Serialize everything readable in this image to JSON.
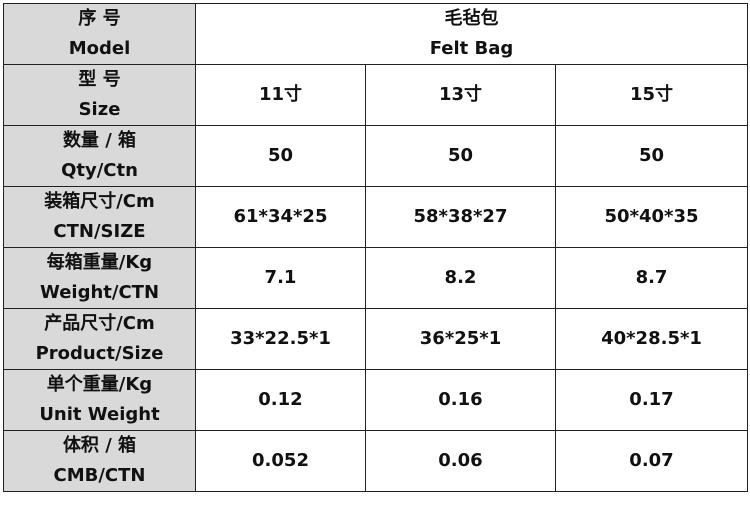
{
  "table": {
    "header": {
      "label": [
        "序 号",
        "Model"
      ],
      "product": [
        "毛毡包",
        "Felt Bag"
      ]
    },
    "rows": [
      {
        "label": [
          "型 号",
          "Size"
        ],
        "cells": [
          "11寸",
          "13寸",
          "15寸"
        ]
      },
      {
        "label": [
          "数量 / 箱",
          "Qty/Ctn"
        ],
        "cells": [
          "50",
          "50",
          "50"
        ]
      },
      {
        "label": [
          "装箱尺寸/Cm",
          "CTN/SIZE"
        ],
        "cells": [
          "61*34*25",
          "58*38*27",
          "50*40*35"
        ]
      },
      {
        "label": [
          "每箱重量/Kg",
          "Weight/CTN"
        ],
        "cells": [
          "7.1",
          "8.2",
          "8.7"
        ]
      },
      {
        "label": [
          "产品尺寸/Cm",
          "Product/Size"
        ],
        "cells": [
          "33*22.5*1",
          "36*25*1",
          "40*28.5*1"
        ]
      },
      {
        "label": [
          "单个重量/Kg",
          "Unit Weight"
        ],
        "cells": [
          "0.12",
          "0.16",
          "0.17"
        ]
      },
      {
        "label": [
          "体积 / 箱",
          "CMB/CTN"
        ],
        "cells": [
          "0.052",
          "0.06",
          "0.07"
        ]
      }
    ]
  }
}
